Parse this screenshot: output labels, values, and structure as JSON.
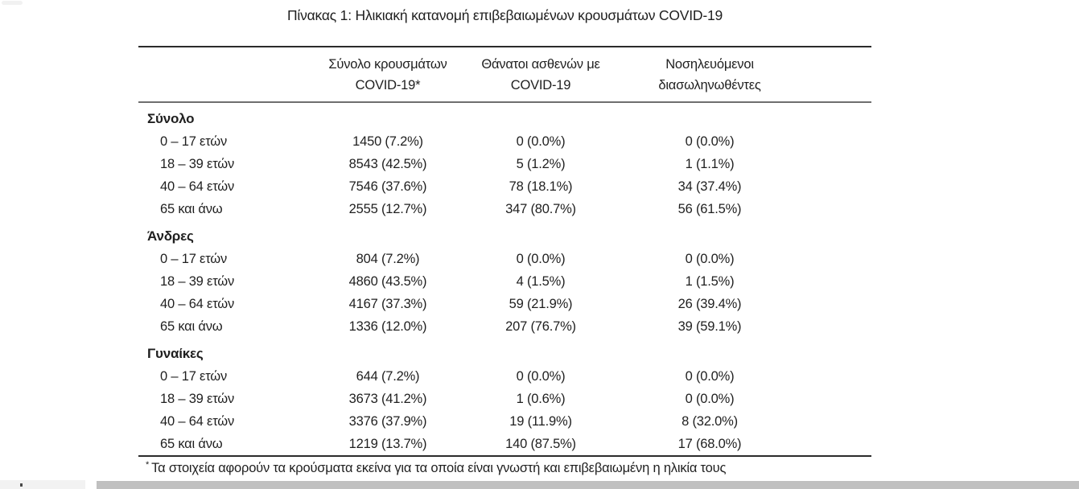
{
  "title": "Πίνακας 1: Ηλικιακή κατανομή επιβεβαιωμένων κρουσμάτων COVID-19",
  "table": {
    "col_headers": [
      {
        "line1": "Σύνολο κρουσμάτων",
        "line2": "COVID-19*"
      },
      {
        "line1": "Θάνατοι ασθενών με",
        "line2": "COVID-19"
      },
      {
        "line1": "Νοσηλευόμενοι",
        "line2": "διασωληνωθέντες"
      }
    ],
    "sections": [
      {
        "label": "Σύνολο",
        "rows": [
          {
            "label": "0 – 17 ετών",
            "cases": "1450 (7.2%)",
            "deaths": "0 (0.0%)",
            "intubated": "0 (0.0%)"
          },
          {
            "label": "18 – 39 ετών",
            "cases": "8543 (42.5%)",
            "deaths": "5 (1.2%)",
            "intubated": "1 (1.1%)"
          },
          {
            "label": "40 – 64 ετών",
            "cases": "7546 (37.6%)",
            "deaths": "78 (18.1%)",
            "intubated": "34 (37.4%)"
          },
          {
            "label": "65 και άνω",
            "cases": "2555 (12.7%)",
            "deaths": "347 (80.7%)",
            "intubated": "56 (61.5%)"
          }
        ]
      },
      {
        "label": "Άνδρες",
        "rows": [
          {
            "label": "0 – 17 ετών",
            "cases": "804 (7.2%)",
            "deaths": "0 (0.0%)",
            "intubated": "0 (0.0%)"
          },
          {
            "label": "18 – 39 ετών",
            "cases": "4860 (43.5%)",
            "deaths": "4 (1.5%)",
            "intubated": "1 (1.5%)"
          },
          {
            "label": "40 – 64 ετών",
            "cases": "4167 (37.3%)",
            "deaths": "59 (21.9%)",
            "intubated": "26 (39.4%)"
          },
          {
            "label": "65 και άνω",
            "cases": "1336 (12.0%)",
            "deaths": "207 (76.7%)",
            "intubated": "39 (59.1%)"
          }
        ]
      },
      {
        "label": "Γυναίκες",
        "rows": [
          {
            "label": "0 – 17 ετών",
            "cases": "644 (7.2%)",
            "deaths": "0 (0.0%)",
            "intubated": "0 (0.0%)"
          },
          {
            "label": "18 – 39 ετών",
            "cases": "3673 (41.2%)",
            "deaths": "1 (0.6%)",
            "intubated": "0 (0.0%)"
          },
          {
            "label": "40 – 64 ετών",
            "cases": "3376 (37.9%)",
            "deaths": "19 (11.9%)",
            "intubated": "8 (32.0%)"
          },
          {
            "label": "65 και άνω",
            "cases": "1219 (13.7%)",
            "deaths": "140 (87.5%)",
            "intubated": "17 (68.0%)"
          }
        ]
      }
    ],
    "footnote_marker": "*",
    "footnote": "Τα στοιχεία αφορούν τα κρούσματα εκείνα για τα οποία είναι γνωστή και επιβεβαιωμένη η ηλικία τους"
  }
}
